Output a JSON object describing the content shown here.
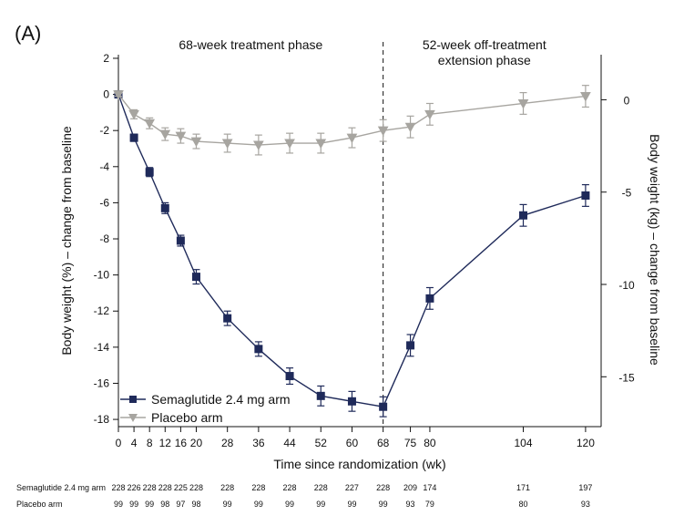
{
  "chart_data": {
    "type": "line",
    "panel_label": "(A)",
    "xlabel": "Time since randomization (wk)",
    "ylabel_left": "Body weight (%) – change from baseline",
    "ylabel_right": "Body weight (kg) – change from baseline",
    "xlim": [
      0,
      124
    ],
    "ylim_left": [
      -18.4,
      2.2
    ],
    "ylim_right": [
      -17.7,
      2.44
    ],
    "x_ticks": [
      0,
      4,
      8,
      12,
      16,
      20,
      28,
      36,
      44,
      52,
      60,
      68,
      75,
      80,
      104,
      120
    ],
    "y_ticks_left": [
      2,
      0,
      -2,
      -4,
      -6,
      -8,
      -10,
      -12,
      -14,
      -16,
      -18
    ],
    "y_ticks_right": [
      0,
      -5,
      -10,
      -15
    ],
    "divider_x": 68,
    "phases": [
      {
        "label": "68-week treatment phase",
        "lines": [
          "68-week treatment phase"
        ],
        "x": 34
      },
      {
        "label": "52-week off-treatment extension phase",
        "lines": [
          "52-week off-treatment",
          "extension phase"
        ],
        "x": 94
      }
    ],
    "legend_position": "bottom-left",
    "series": [
      {
        "name": "Semaglutide 2.4 mg arm",
        "color": "#1f2a5a",
        "marker": "square",
        "x": [
          0,
          4,
          8,
          12,
          16,
          20,
          28,
          36,
          44,
          52,
          60,
          68,
          75,
          80,
          104,
          120
        ],
        "y": [
          0.0,
          -2.4,
          -4.3,
          -6.3,
          -8.1,
          -10.1,
          -12.4,
          -14.1,
          -15.6,
          -16.7,
          -17.0,
          -17.3,
          -13.9,
          -11.3,
          -6.7,
          -5.6
        ],
        "error": [
          0.15,
          0.2,
          0.25,
          0.3,
          0.3,
          0.4,
          0.4,
          0.4,
          0.45,
          0.55,
          0.55,
          0.55,
          0.6,
          0.6,
          0.6,
          0.6
        ]
      },
      {
        "name": "Placebo arm",
        "color": "#a7a5a0",
        "marker": "triangle-down",
        "x": [
          0,
          4,
          8,
          12,
          16,
          20,
          28,
          36,
          44,
          52,
          60,
          68,
          75,
          80,
          104,
          120
        ],
        "y": [
          0.0,
          -1.1,
          -1.6,
          -2.2,
          -2.3,
          -2.6,
          -2.7,
          -2.8,
          -2.7,
          -2.7,
          -2.4,
          -2.0,
          -1.8,
          -1.1,
          -0.5,
          -0.1
        ],
        "error": [
          0.1,
          0.25,
          0.3,
          0.35,
          0.4,
          0.4,
          0.5,
          0.55,
          0.55,
          0.55,
          0.55,
          0.6,
          0.6,
          0.6,
          0.6,
          0.6
        ]
      }
    ],
    "at_risk": {
      "rows": [
        {
          "label": "Semaglutide 2.4 mg arm",
          "x": [
            0,
            4,
            8,
            12,
            16,
            20,
            28,
            36,
            44,
            52,
            60,
            68,
            75,
            80,
            104,
            120
          ],
          "values": [
            "228",
            "226",
            "228",
            "228",
            "225",
            "228",
            "228",
            "228",
            "228",
            "228",
            "227",
            "228",
            "209",
            "174",
            "171",
            "197"
          ]
        },
        {
          "label": "Placebo arm",
          "x": [
            0,
            4,
            8,
            12,
            16,
            20,
            28,
            36,
            44,
            52,
            60,
            68,
            75,
            80,
            104,
            120
          ],
          "values": [
            "99",
            "99",
            "99",
            "98",
            "97",
            "98",
            "99",
            "99",
            "99",
            "99",
            "99",
            "99",
            "93",
            "79",
            "80",
            "93"
          ]
        }
      ]
    }
  }
}
